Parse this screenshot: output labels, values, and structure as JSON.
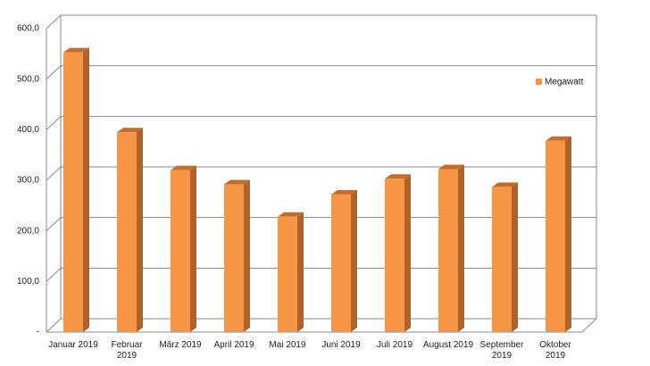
{
  "chart_data": {
    "type": "bar3d",
    "categories": [
      "Januar 2019",
      "Februar 2019",
      "März 2019",
      "April 2019",
      "Mai 2019",
      "Juni 2019",
      "Juli 2019",
      "August 2019",
      "September 2019",
      "Oktober 2019"
    ],
    "series": [
      {
        "name": "Megawatt",
        "color": "#f79646",
        "values": [
          553,
          395,
          320,
          292,
          228,
          272,
          303,
          322,
          287,
          378
        ]
      }
    ],
    "ylim": [
      0,
      600
    ],
    "yticks": [
      {
        "value": 0,
        "label": "-"
      },
      {
        "value": 100,
        "label": "100,0"
      },
      {
        "value": 200,
        "label": "200,0"
      },
      {
        "value": 300,
        "label": "300,0"
      },
      {
        "value": 400,
        "label": "400,0"
      },
      {
        "value": 500,
        "label": "500,0"
      },
      {
        "value": 600,
        "label": "600,0"
      }
    ],
    "grid": true,
    "legend": "right"
  }
}
